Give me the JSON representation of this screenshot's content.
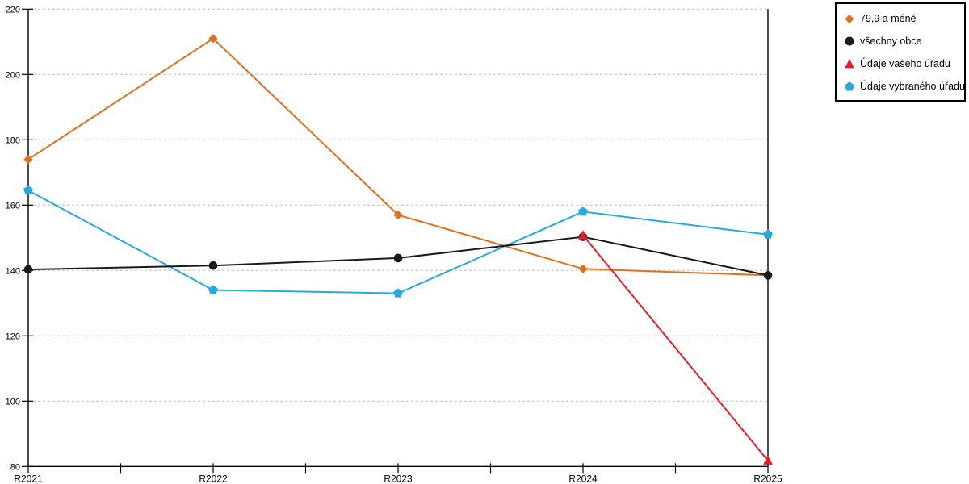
{
  "chart_data": {
    "type": "line",
    "title": "",
    "xlabel": "",
    "ylabel": "",
    "categories": [
      "R2021",
      "R2022",
      "R2023",
      "R2024",
      "R2025"
    ],
    "series": [
      {
        "name": "79,9 a méně",
        "color": "#e0701e",
        "marker": "diamond",
        "values": [
          174,
          211,
          157,
          140.5,
          138.5
        ]
      },
      {
        "name": "všechny obce",
        "color": "#1a1a1a",
        "marker": "circle",
        "values": [
          140.3,
          141.5,
          143.8,
          150.3,
          138.5
        ]
      },
      {
        "name": "Údaje vašeho úřadu",
        "color": "#ed1c24",
        "marker": "triangle-up",
        "values": [
          null,
          null,
          null,
          150.8,
          81.8
        ]
      },
      {
        "name": "Údaje vybraného úřadu",
        "color": "#29a8df",
        "marker": "pentagon",
        "values": [
          164.5,
          134,
          133,
          158,
          151
        ]
      }
    ],
    "ylim": [
      80,
      220
    ],
    "ytick_step": 20,
    "x_minor_ticks": true,
    "grid": "horizontal-dashed",
    "grid_color": "#bdbdbd",
    "axis_color": "#000000",
    "legend_position": "top-right-outside",
    "z_order": [
      0,
      3,
      1,
      2
    ]
  }
}
